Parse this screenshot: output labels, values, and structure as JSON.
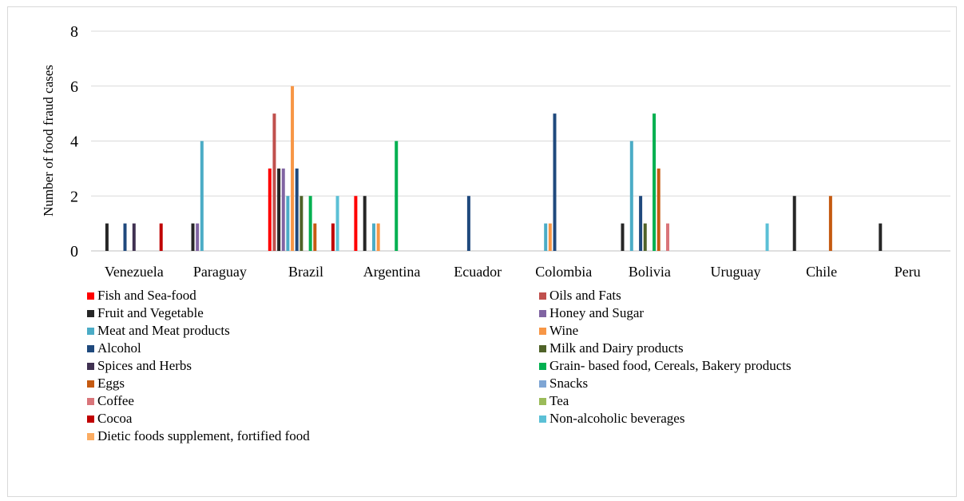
{
  "chart_data": {
    "type": "bar",
    "ylabel": "Number of food fraud cases",
    "xlabel": "",
    "ylim": [
      0,
      8
    ],
    "yticks": [
      0,
      2,
      4,
      6,
      8
    ],
    "grid": true,
    "legend_position": "bottom",
    "categories": [
      "Venezuela",
      "Paraguay",
      "Brazil",
      "Argentina",
      "Ecuador",
      "Colombia",
      "Bolivia",
      "Uruguay",
      "Chile",
      "Peru"
    ],
    "series": [
      {
        "name": "Fish and Sea-food",
        "color": "#ff0000",
        "values": [
          0,
          0,
          3,
          2,
          0,
          0,
          0,
          0,
          0,
          0
        ]
      },
      {
        "name": "Oils and Fats",
        "color": "#c0504d",
        "values": [
          0,
          0,
          5,
          0,
          0,
          0,
          0,
          0,
          0,
          0
        ]
      },
      {
        "name": "Fruit and Vegetable",
        "color": "#262626",
        "values": [
          1,
          1,
          3,
          2,
          0,
          0,
          1,
          0,
          2,
          1
        ]
      },
      {
        "name": "Honey and Sugar",
        "color": "#8064a2",
        "values": [
          0,
          1,
          3,
          0,
          0,
          0,
          0,
          0,
          0,
          0
        ]
      },
      {
        "name": "Meat and Meat products",
        "color": "#4bacc6",
        "values": [
          0,
          4,
          2,
          1,
          0,
          1,
          4,
          0,
          0,
          0
        ]
      },
      {
        "name": "Wine",
        "color": "#f79646",
        "values": [
          0,
          0,
          6,
          1,
          0,
          1,
          0,
          0,
          0,
          0
        ]
      },
      {
        "name": "Alcohol",
        "color": "#1f497d",
        "values": [
          1,
          0,
          3,
          0,
          2,
          5,
          2,
          0,
          0,
          0
        ]
      },
      {
        "name": "Milk and Dairy products",
        "color": "#4f6228",
        "values": [
          0,
          0,
          2,
          0,
          0,
          0,
          1,
          0,
          0,
          0
        ]
      },
      {
        "name": "Spices and Herbs",
        "color": "#403151",
        "values": [
          1,
          0,
          0,
          0,
          0,
          0,
          0,
          0,
          0,
          0
        ]
      },
      {
        "name": "Grain- based food, Cereals, Bakery products",
        "color": "#00b050",
        "values": [
          0,
          0,
          2,
          4,
          0,
          0,
          5,
          0,
          0,
          0
        ]
      },
      {
        "name": "Eggs",
        "color": "#c55a11",
        "values": [
          0,
          0,
          1,
          0,
          0,
          0,
          3,
          0,
          2,
          0
        ]
      },
      {
        "name": "Snacks",
        "color": "#7ea5d4",
        "values": [
          0,
          0,
          0,
          0,
          0,
          0,
          0,
          0,
          0,
          0
        ]
      },
      {
        "name": "Coffee",
        "color": "#d9757a",
        "values": [
          0,
          0,
          0,
          0,
          0,
          0,
          1,
          0,
          0,
          0
        ]
      },
      {
        "name": "Tea",
        "color": "#9bbb59",
        "values": [
          0,
          0,
          0,
          0,
          0,
          0,
          0,
          0,
          0,
          0
        ]
      },
      {
        "name": "Cocoa",
        "color": "#c00000",
        "values": [
          1,
          0,
          1,
          0,
          0,
          0,
          0,
          0,
          0,
          0
        ]
      },
      {
        "name": "Non-alcoholic beverages",
        "color": "#5bc0d6",
        "values": [
          0,
          0,
          2,
          0,
          0,
          0,
          0,
          1,
          0,
          0
        ]
      },
      {
        "name": "Dietic foods supplement, fortified food",
        "color": "#fbac62",
        "values": [
          0,
          0,
          0,
          0,
          0,
          0,
          0,
          0,
          0,
          0
        ]
      }
    ]
  }
}
